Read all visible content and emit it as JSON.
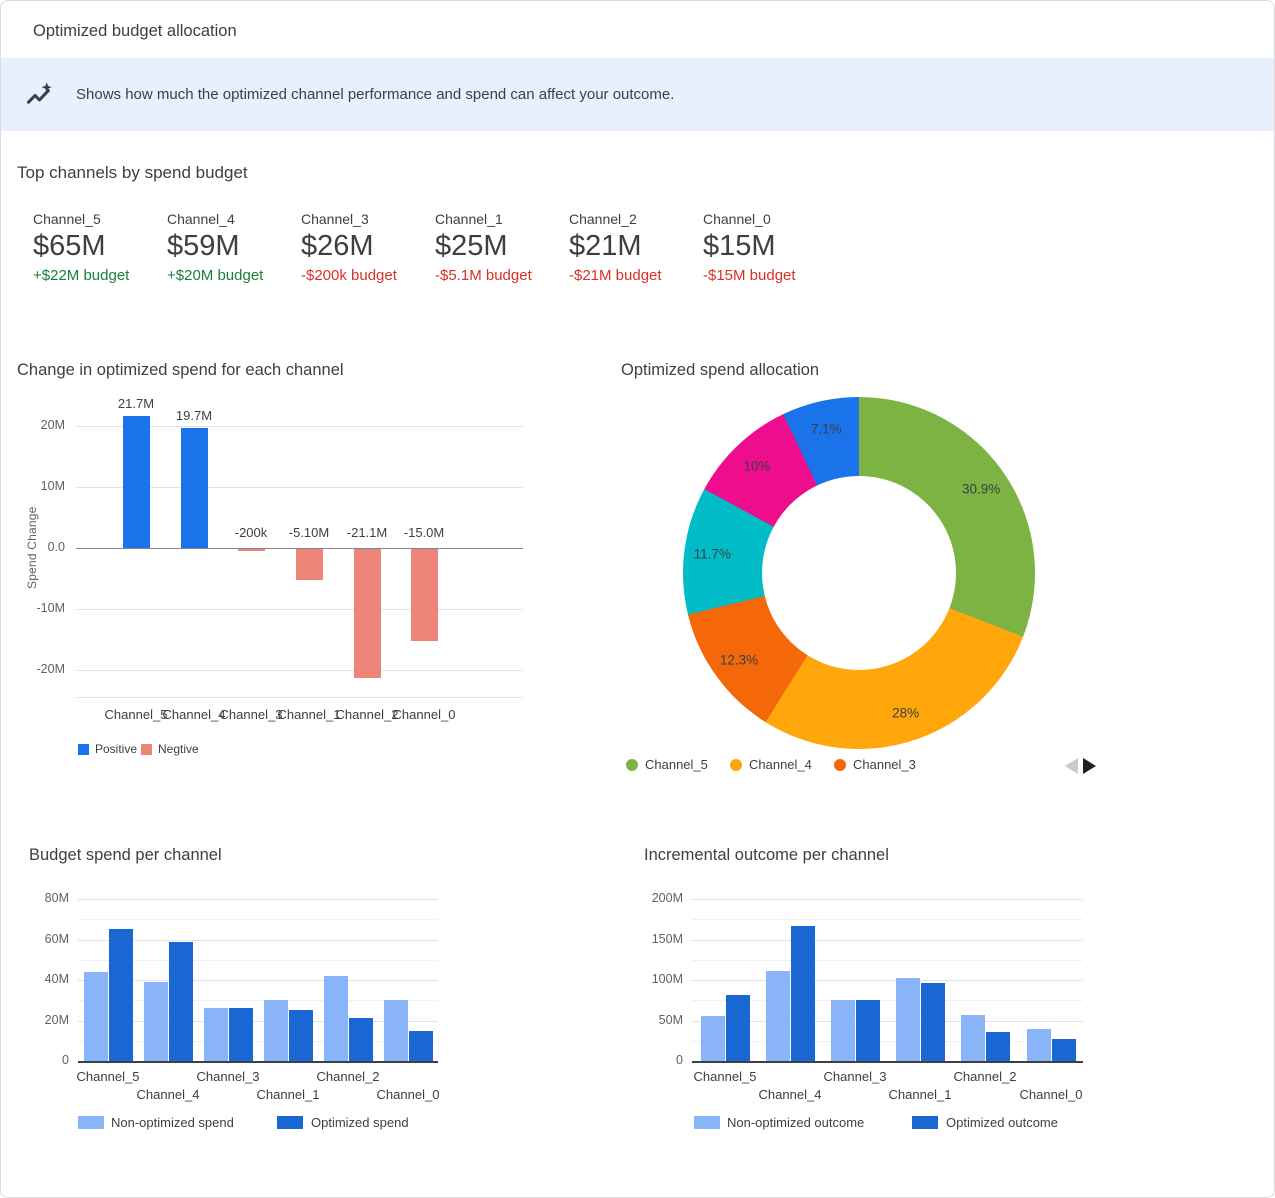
{
  "page": {
    "title": "Optimized budget allocation",
    "banner": {
      "icon": "insights-icon",
      "text": "Shows how much the optimized channel performance and spend can affect your outcome."
    }
  },
  "colors": {
    "banner_bg": "#E8F0FE",
    "positive_text": "#188038",
    "negative_text": "#D93025",
    "title_text": "#3C4043",
    "axis_text": "#616161",
    "non_optimized_blue": "#8AB4F8",
    "optimized_blue": "#1967D2"
  },
  "top_channels": {
    "heading": "Top channels by spend budget",
    "items": [
      {
        "name": "Channel_5",
        "value": "$65M",
        "delta": "+$22M budget",
        "direction": "up"
      },
      {
        "name": "Channel_4",
        "value": "$59M",
        "delta": "+$20M budget",
        "direction": "up"
      },
      {
        "name": "Channel_3",
        "value": "$26M",
        "delta": "-$200k budget",
        "direction": "down"
      },
      {
        "name": "Channel_1",
        "value": "$25M",
        "delta": "-$5.1M budget",
        "direction": "down"
      },
      {
        "name": "Channel_2",
        "value": "$21M",
        "delta": "-$21M budget",
        "direction": "down"
      },
      {
        "name": "Channel_0",
        "value": "$15M",
        "delta": "-$15M budget",
        "direction": "down"
      }
    ]
  },
  "chart_data": [
    {
      "id": "spend_change",
      "type": "bar",
      "title": "Change in optimized spend for each channel",
      "ylabel": "Spend Change",
      "unit": "millions USD",
      "categories": [
        "Channel_5",
        "Channel_4",
        "Channel_3",
        "Channel_1",
        "Channel_2",
        "Channel_0"
      ],
      "values": [
        21.7,
        19.7,
        -0.2,
        -5.1,
        -21.1,
        -15.0
      ],
      "value_labels": [
        "21.7M",
        "19.7M",
        "-200k",
        "-5.10M",
        "-21.1M",
        "-15.0M"
      ],
      "ylim": [
        -25,
        25
      ],
      "yticks": [
        {
          "value": 20,
          "label": "20M"
        },
        {
          "value": 10,
          "label": "10M"
        },
        {
          "value": 0,
          "label": "0.0"
        },
        {
          "value": -10,
          "label": "-10M"
        },
        {
          "value": -20,
          "label": "-20M"
        }
      ],
      "grid": true,
      "legend_position": "bottom",
      "legend": [
        {
          "label": "Positive",
          "color": "#1A73E8"
        },
        {
          "label": "Negtive",
          "color": "#EE8579"
        }
      ]
    },
    {
      "id": "spend_allocation",
      "type": "pie",
      "donut": true,
      "title": "Optimized spend allocation",
      "slices": [
        {
          "label": "Channel_5",
          "pct": 30.9,
          "pct_label": "30.9%",
          "color": "#7CB342"
        },
        {
          "label": "Channel_4",
          "pct": 28,
          "pct_label": "28%",
          "color": "#FFA60A"
        },
        {
          "label": "Channel_3",
          "pct": 12.3,
          "pct_label": "12.3%",
          "color": "#F4680A"
        },
        {
          "pct": 11.7,
          "pct_label": "11.7%",
          "color": "#00BCC6"
        },
        {
          "pct": 10,
          "pct_label": "10%",
          "color": "#ED0D8D"
        },
        {
          "pct": 7.1,
          "pct_label": "7.1%",
          "color": "#1A73E8"
        }
      ],
      "legend_position": "bottom",
      "legend_visible_labels": [
        "Channel_5",
        "Channel_4",
        "Channel_3"
      ],
      "legend_pagination": {
        "prev_enabled": false,
        "next_enabled": true
      }
    },
    {
      "id": "budget_spend",
      "type": "bar",
      "title": "Budget spend per channel",
      "unit": "millions USD",
      "categories": [
        "Channel_5",
        "Channel_4",
        "Channel_3",
        "Channel_1",
        "Channel_2",
        "Channel_0"
      ],
      "series": [
        {
          "name": "Non-optimized spend",
          "color": "#8AB4F8",
          "values": [
            44,
            39,
            26,
            30,
            42,
            30
          ]
        },
        {
          "name": "Optimized spend",
          "color": "#1967D2",
          "values": [
            65,
            59,
            26,
            25,
            21,
            15
          ]
        }
      ],
      "ylim": [
        0,
        80
      ],
      "yticks": [
        {
          "value": 0,
          "label": "0"
        },
        {
          "value": 20,
          "label": "20M"
        },
        {
          "value": 40,
          "label": "40M"
        },
        {
          "value": 60,
          "label": "60M"
        },
        {
          "value": 80,
          "label": "80M"
        }
      ],
      "minor_ticks": [
        10,
        30,
        50,
        70
      ],
      "grid": true,
      "legend_position": "bottom"
    },
    {
      "id": "incremental_outcome",
      "type": "bar",
      "title": "Incremental outcome per channel",
      "unit": "millions USD",
      "categories": [
        "Channel_5",
        "Channel_4",
        "Channel_3",
        "Channel_1",
        "Channel_2",
        "Channel_0"
      ],
      "series": [
        {
          "name": "Non-optimized outcome",
          "color": "#8AB4F8",
          "values": [
            55,
            111,
            75,
            102,
            57,
            40
          ]
        },
        {
          "name": "Optimized outcome",
          "color": "#1967D2",
          "values": [
            82,
            167,
            75,
            96,
            36,
            27
          ]
        }
      ],
      "ylim": [
        0,
        200
      ],
      "yticks": [
        {
          "value": 0,
          "label": "0"
        },
        {
          "value": 50,
          "label": "50M"
        },
        {
          "value": 100,
          "label": "100M"
        },
        {
          "value": 150,
          "label": "150M"
        },
        {
          "value": 200,
          "label": "200M"
        }
      ],
      "minor_ticks": [
        25,
        75,
        125,
        175
      ],
      "grid": true,
      "legend_position": "bottom"
    }
  ]
}
